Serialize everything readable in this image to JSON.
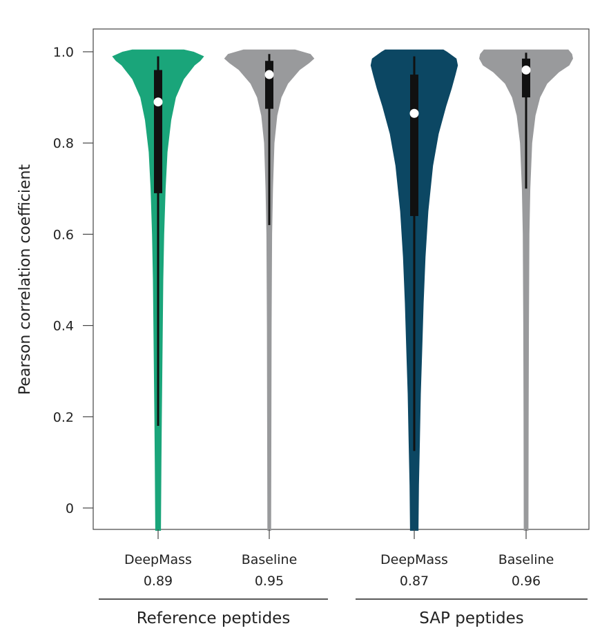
{
  "chart_data": {
    "type": "violin",
    "ylabel": "Pearson correlation coefficient",
    "xlabel": "",
    "ylim": [
      -0.05,
      1.05
    ],
    "yticks": [
      {
        "value": 0,
        "label": "0"
      },
      {
        "value": 0.2,
        "label": "0.2"
      },
      {
        "value": 0.4,
        "label": "0.4"
      },
      {
        "value": 0.6,
        "label": "0.6"
      },
      {
        "value": 0.8,
        "label": "0.8"
      },
      {
        "value": 1.0,
        "label": "1.0"
      }
    ],
    "grid": false,
    "groups": [
      {
        "label": "Reference peptides",
        "categories": [
          "DeepMass",
          "Baseline"
        ]
      },
      {
        "label": "SAP peptides",
        "categories": [
          "DeepMass",
          "Baseline"
        ]
      }
    ],
    "violins": [
      {
        "name": "DeepMass",
        "group": "Reference peptides",
        "median_label": "0.89",
        "color": "#1aa57a",
        "median": 0.89,
        "q1": 0.69,
        "q3": 0.96,
        "whisker_low": 0.18,
        "whisker_high": 0.99,
        "density": [
          {
            "y": -0.05,
            "w": 0.06
          },
          {
            "y": 0.1,
            "w": 0.07
          },
          {
            "y": 0.2,
            "w": 0.08
          },
          {
            "y": 0.3,
            "w": 0.09
          },
          {
            "y": 0.4,
            "w": 0.1
          },
          {
            "y": 0.5,
            "w": 0.11
          },
          {
            "y": 0.6,
            "w": 0.13
          },
          {
            "y": 0.7,
            "w": 0.16
          },
          {
            "y": 0.78,
            "w": 0.2
          },
          {
            "y": 0.85,
            "w": 0.28
          },
          {
            "y": 0.9,
            "w": 0.38
          },
          {
            "y": 0.94,
            "w": 0.55
          },
          {
            "y": 0.97,
            "w": 0.78
          },
          {
            "y": 0.98,
            "w": 0.9
          },
          {
            "y": 0.99,
            "w": 0.98
          },
          {
            "y": 1.0,
            "w": 0.76
          },
          {
            "y": 1.005,
            "w": 0.55
          }
        ]
      },
      {
        "name": "Baseline",
        "group": "Reference peptides",
        "median_label": "0.95",
        "color": "#999a9c",
        "median": 0.95,
        "q1": 0.875,
        "q3": 0.98,
        "whisker_low": 0.62,
        "whisker_high": 0.995,
        "density": [
          {
            "y": -0.05,
            "w": 0.04
          },
          {
            "y": 0.2,
            "w": 0.045
          },
          {
            "y": 0.4,
            "w": 0.05
          },
          {
            "y": 0.6,
            "w": 0.06
          },
          {
            "y": 0.7,
            "w": 0.08
          },
          {
            "y": 0.8,
            "w": 0.11
          },
          {
            "y": 0.86,
            "w": 0.17
          },
          {
            "y": 0.9,
            "w": 0.26
          },
          {
            "y": 0.93,
            "w": 0.4
          },
          {
            "y": 0.96,
            "w": 0.65
          },
          {
            "y": 0.975,
            "w": 0.85
          },
          {
            "y": 0.985,
            "w": 0.96
          },
          {
            "y": 0.995,
            "w": 0.88
          },
          {
            "y": 1.005,
            "w": 0.55
          }
        ]
      },
      {
        "name": "DeepMass",
        "group": "SAP peptides",
        "median_label": "0.87",
        "color": "#0c4763",
        "median": 0.865,
        "q1": 0.64,
        "q3": 0.95,
        "whisker_low": 0.125,
        "whisker_high": 0.99,
        "density": [
          {
            "y": -0.05,
            "w": 0.09
          },
          {
            "y": 0.05,
            "w": 0.1
          },
          {
            "y": 0.15,
            "w": 0.12
          },
          {
            "y": 0.25,
            "w": 0.14
          },
          {
            "y": 0.35,
            "w": 0.17
          },
          {
            "y": 0.45,
            "w": 0.2
          },
          {
            "y": 0.55,
            "w": 0.24
          },
          {
            "y": 0.65,
            "w": 0.3
          },
          {
            "y": 0.75,
            "w": 0.4
          },
          {
            "y": 0.82,
            "w": 0.52
          },
          {
            "y": 0.88,
            "w": 0.68
          },
          {
            "y": 0.92,
            "w": 0.8
          },
          {
            "y": 0.95,
            "w": 0.88
          },
          {
            "y": 0.97,
            "w": 0.93
          },
          {
            "y": 0.985,
            "w": 0.9
          },
          {
            "y": 1.0,
            "w": 0.7
          },
          {
            "y": 1.005,
            "w": 0.62
          }
        ]
      },
      {
        "name": "Baseline",
        "group": "SAP peptides",
        "median_label": "0.96",
        "color": "#999a9c",
        "median": 0.96,
        "q1": 0.9,
        "q3": 0.985,
        "whisker_low": 0.7,
        "whisker_high": 0.998,
        "density": [
          {
            "y": -0.05,
            "w": 0.05
          },
          {
            "y": 0.2,
            "w": 0.055
          },
          {
            "y": 0.4,
            "w": 0.06
          },
          {
            "y": 0.6,
            "w": 0.07
          },
          {
            "y": 0.7,
            "w": 0.09
          },
          {
            "y": 0.8,
            "w": 0.13
          },
          {
            "y": 0.86,
            "w": 0.2
          },
          {
            "y": 0.9,
            "w": 0.3
          },
          {
            "y": 0.93,
            "w": 0.45
          },
          {
            "y": 0.955,
            "w": 0.7
          },
          {
            "y": 0.97,
            "w": 0.92
          },
          {
            "y": 0.985,
            "w": 1.0
          },
          {
            "y": 0.995,
            "w": 0.98
          },
          {
            "y": 1.005,
            "w": 0.9
          }
        ]
      }
    ]
  }
}
